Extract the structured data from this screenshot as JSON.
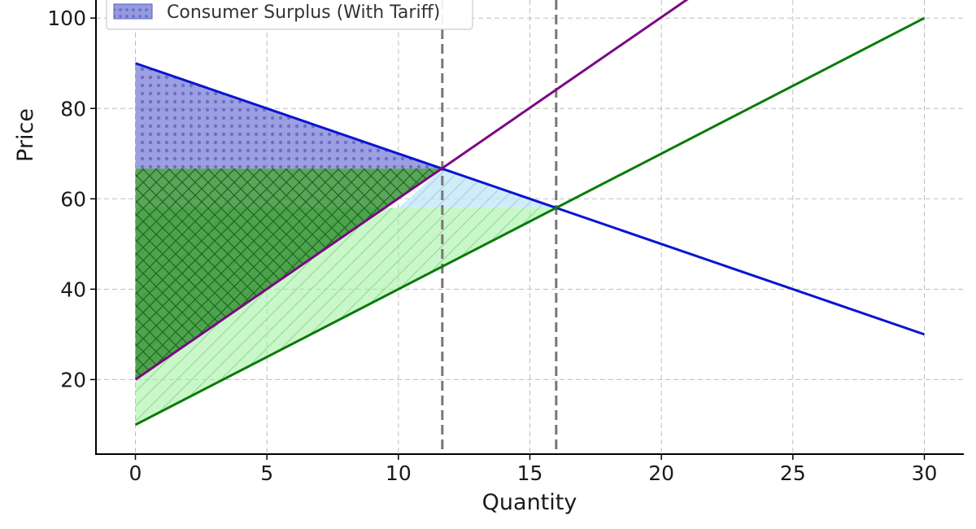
{
  "chart_data": {
    "type": "line",
    "xlabel": "Quantity",
    "ylabel": "Price",
    "xlim": [
      -1.5,
      31.5
    ],
    "ylim": [
      3.5,
      104
    ],
    "xticks": [
      0,
      5,
      10,
      15,
      20,
      25,
      30
    ],
    "yticks": [
      20,
      40,
      60,
      80,
      100
    ],
    "grid": true,
    "legend": {
      "placement": "top-left",
      "entries": [
        {
          "label": "Consumer Surplus (With Tariff)",
          "color": "#7b7fd6"
        }
      ]
    },
    "series": [
      {
        "key": "demand",
        "color": "#0a14d0",
        "x": [
          0,
          30
        ],
        "y": [
          90,
          30
        ]
      },
      {
        "key": "supply",
        "color": "#0b7a0b",
        "x": [
          0,
          30
        ],
        "y": [
          10,
          100
        ]
      },
      {
        "key": "supply_with_tariff",
        "color": "#7a0a82",
        "x": [
          0,
          21.2
        ],
        "y": [
          20,
          105
        ]
      }
    ],
    "reference_lines": [
      {
        "axis": "x",
        "value": 11.67,
        "color": "#777777"
      },
      {
        "axis": "x",
        "value": 16,
        "color": "#777777"
      }
    ],
    "regions": [
      {
        "key": "cs_with_tariff",
        "fill": "#7b7fd6",
        "pattern": "dots",
        "points": [
          [
            0,
            90
          ],
          [
            11.67,
            66.7
          ],
          [
            0,
            66.7
          ]
        ]
      },
      {
        "key": "ps_with_tariff",
        "fill": "#2f8f2f",
        "pattern": "crosshatch",
        "points": [
          [
            0,
            20
          ],
          [
            11.67,
            66.7
          ],
          [
            0,
            66.7
          ]
        ]
      },
      {
        "key": "ps_free_trade",
        "fill": "#9df09d",
        "pattern": "diagonal",
        "points": [
          [
            0,
            10
          ],
          [
            16,
            58
          ],
          [
            0,
            58
          ]
        ]
      },
      {
        "key": "cs_free_trade",
        "fill": "#bfe6f5",
        "pattern": "diagonal",
        "points": [
          [
            10,
            58
          ],
          [
            11.67,
            66.7
          ],
          [
            16,
            58
          ]
        ]
      }
    ]
  }
}
